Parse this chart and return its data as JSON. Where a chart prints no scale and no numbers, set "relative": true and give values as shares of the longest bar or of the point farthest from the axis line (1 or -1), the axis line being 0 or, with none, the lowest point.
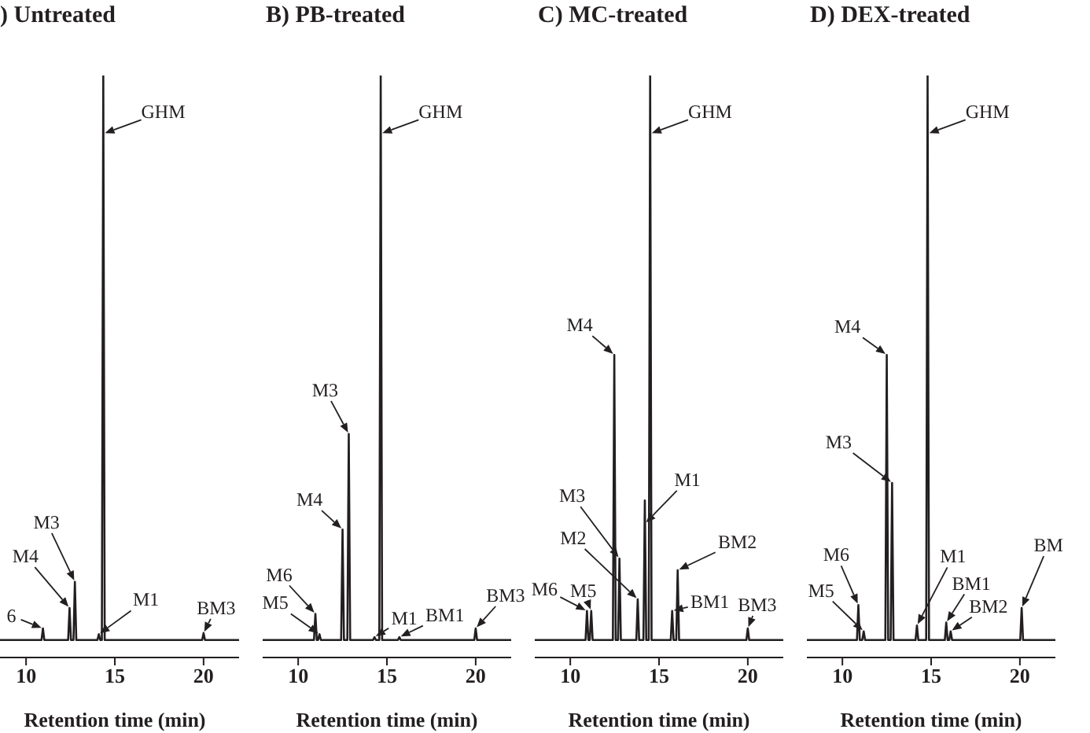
{
  "chart_data": [
    {
      "type": "line",
      "title": ") Untreated",
      "xlabel": "Retention time (min)",
      "relative": true,
      "xlim": [
        8,
        22
      ],
      "xticks": [
        10,
        15,
        20
      ],
      "series": [
        {
          "color": "#231f20",
          "x": [
            8,
            10.87,
            10.95,
            11.03,
            12.37,
            12.45,
            12.53,
            12.67,
            12.75,
            12.83,
            14.02,
            14.1,
            14.18,
            14.27,
            14.35,
            14.43,
            19.92,
            20.0,
            20.08,
            22
          ],
          "values": [
            0.03,
            0.03,
            0.05,
            0.03,
            0.03,
            0.085,
            0.03,
            0.03,
            0.13,
            0.03,
            0.03,
            0.04,
            0.03,
            0.03,
            1,
            0.03,
            0.03,
            0.042,
            0.03,
            0.03
          ]
        }
      ],
      "annotations": [
        {
          "text": "6",
          "x": 10.95,
          "y": 0.05
        },
        {
          "text": "M4",
          "x": 12.45,
          "y": 0.085
        },
        {
          "text": "M3",
          "x": 12.75,
          "y": 0.13
        },
        {
          "text": "GHM",
          "x": 14.36,
          "y": 0.9
        },
        {
          "text": "M1",
          "x": 14.1,
          "y": 0.04
        },
        {
          "text": "BM3",
          "x": 20.0,
          "y": 0.042
        }
      ]
    },
    {
      "type": "line",
      "title": "B) PB-treated",
      "xlabel": "Retention time (min)",
      "relative": true,
      "xlim": [
        8,
        22
      ],
      "xticks": [
        10,
        15,
        20
      ],
      "series": [
        {
          "color": "#231f20",
          "x": [
            8,
            10.89,
            10.97,
            11.05,
            11.12,
            11.2,
            11.28,
            12.42,
            12.5,
            12.58,
            12.77,
            12.85,
            12.93,
            14.22,
            14.3,
            14.38,
            14.57,
            14.65,
            14.73,
            15.62,
            15.7,
            15.78,
            19.92,
            20.0,
            20.08,
            22
          ],
          "values": [
            0.03,
            0.03,
            0.075,
            0.03,
            0.03,
            0.04,
            0.03,
            0.03,
            0.22,
            0.03,
            0.03,
            0.384,
            0.03,
            0.03,
            0.035,
            0.03,
            0.03,
            1,
            0.03,
            0.03,
            0.035,
            0.03,
            0.03,
            0.05,
            0.03,
            0.03
          ]
        }
      ],
      "annotations": [
        {
          "text": "M6",
          "x": 10.97,
          "y": 0.075
        },
        {
          "text": "M5",
          "x": 11.2,
          "y": 0.04
        },
        {
          "text": "M4",
          "x": 12.5,
          "y": 0.22
        },
        {
          "text": "M3",
          "x": 12.85,
          "y": 0.384
        },
        {
          "text": "GHM",
          "x": 14.66,
          "y": 0.9
        },
        {
          "text": "M1",
          "x": 14.3,
          "y": 0.035
        },
        {
          "text": "BM1",
          "x": 15.7,
          "y": 0.035
        },
        {
          "text": "BM3",
          "x": 20.0,
          "y": 0.05
        }
      ]
    },
    {
      "type": "line",
      "title": "C) MC-treated",
      "xlabel": "Retention time (min)",
      "relative": true,
      "xlim": [
        8,
        22
      ],
      "xticks": [
        10,
        15,
        20
      ],
      "series": [
        {
          "color": "#231f20",
          "x": [
            8,
            10.86,
            10.94,
            11.02,
            11.1,
            11.18,
            11.26,
            12.4,
            12.48,
            12.56,
            12.69,
            12.77,
            12.85,
            13.72,
            13.8,
            13.88,
            14.12,
            14.2,
            14.28,
            14.42,
            14.5,
            14.58,
            15.66,
            15.74,
            15.82,
            15.97,
            16.05,
            16.13,
            19.92,
            20.0,
            20.08,
            22
          ],
          "values": [
            0.03,
            0.03,
            0.08,
            0.03,
            0.03,
            0.08,
            0.03,
            0.03,
            0.52,
            0.03,
            0.03,
            0.17,
            0.03,
            0.03,
            0.1,
            0.03,
            0.03,
            0.27,
            0.03,
            0.03,
            1,
            0.03,
            0.03,
            0.08,
            0.03,
            0.03,
            0.15,
            0.03,
            0.03,
            0.05,
            0.03,
            0.03
          ]
        }
      ],
      "annotations": [
        {
          "text": "M6",
          "x": 10.94,
          "y": 0.08
        },
        {
          "text": "M5",
          "x": 11.18,
          "y": 0.08
        },
        {
          "text": "M4",
          "x": 12.48,
          "y": 0.52
        },
        {
          "text": "M3",
          "x": 12.77,
          "y": 0.17
        },
        {
          "text": "M2",
          "x": 13.8,
          "y": 0.1
        },
        {
          "text": "M1",
          "x": 14.21,
          "y": 0.23
        },
        {
          "text": "GHM",
          "x": 14.51,
          "y": 0.9
        },
        {
          "text": "BM1",
          "x": 15.74,
          "y": 0.08
        },
        {
          "text": "BM2",
          "x": 16.05,
          "y": 0.15
        },
        {
          "text": "BM3",
          "x": 20.0,
          "y": 0.05
        }
      ]
    },
    {
      "type": "line",
      "title": "D) DEX-treated",
      "xlabel": "Retention time (min)",
      "relative": true,
      "xlim": [
        8,
        22
      ],
      "xticks": [
        10,
        15,
        20
      ],
      "series": [
        {
          "color": "#231f20",
          "x": [
            8,
            10.82,
            10.9,
            10.98,
            11.12,
            11.2,
            11.28,
            12.42,
            12.5,
            12.58,
            12.72,
            12.8,
            12.88,
            14.12,
            14.2,
            14.28,
            14.72,
            14.8,
            14.88,
            15.77,
            15.85,
            15.93,
            16.02,
            16.1,
            16.18,
            20.02,
            20.1,
            20.18,
            22
          ],
          "values": [
            0.03,
            0.03,
            0.09,
            0.03,
            0.03,
            0.045,
            0.03,
            0.03,
            0.52,
            0.03,
            0.03,
            0.3,
            0.03,
            0.03,
            0.055,
            0.03,
            0.03,
            1,
            0.03,
            0.03,
            0.06,
            0.03,
            0.03,
            0.045,
            0.03,
            0.03,
            0.085,
            0.03,
            0.03
          ]
        }
      ],
      "annotations": [
        {
          "text": "M6",
          "x": 10.9,
          "y": 0.09
        },
        {
          "text": "M5",
          "x": 11.2,
          "y": 0.045
        },
        {
          "text": "M4",
          "x": 12.5,
          "y": 0.52
        },
        {
          "text": "M3",
          "x": 12.8,
          "y": 0.3
        },
        {
          "text": "GHM",
          "x": 14.81,
          "y": 0.9
        },
        {
          "text": "M1",
          "x": 14.2,
          "y": 0.055
        },
        {
          "text": "BM1",
          "x": 15.85,
          "y": 0.06
        },
        {
          "text": "BM2",
          "x": 16.1,
          "y": 0.045
        },
        {
          "text": "BM",
          "x": 20.1,
          "y": 0.085
        }
      ]
    }
  ]
}
